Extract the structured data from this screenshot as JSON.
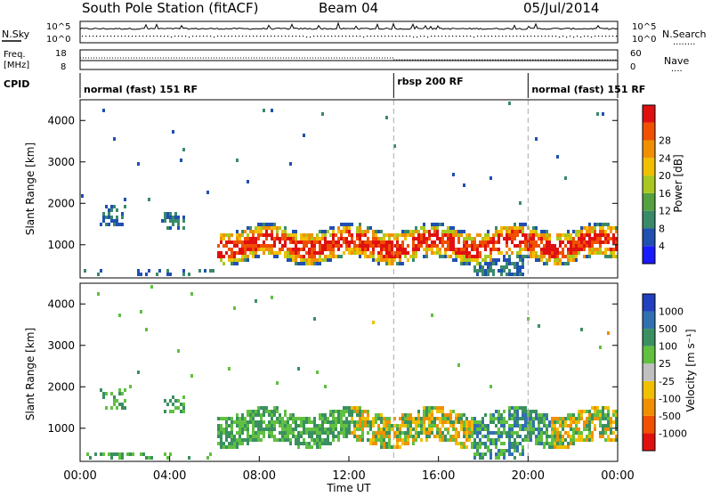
{
  "header": {
    "station": "South Pole Station (fitACF)",
    "beam": "Beam 04",
    "date": "05/Jul/2014"
  },
  "noise_panel": {
    "left_label": "N.Sky",
    "right_label": "N.Search",
    "left_ticks": [
      "10^5",
      "10^0"
    ],
    "right_ticks": [
      "10^5",
      "10^0"
    ]
  },
  "freq_panel": {
    "left_label_line1": "Freq.",
    "left_label_line2": "[MHz]",
    "right_label": "Nave",
    "left_ticks": [
      "18",
      "8"
    ],
    "right_ticks": [
      "60",
      "0"
    ]
  },
  "cpid_panel": {
    "label": "CPID",
    "segments": [
      {
        "label": "normal (fast) 151 RF",
        "start": 0,
        "end": 14
      },
      {
        "label": "rbsp 200 RF",
        "start": 14,
        "end": 20
      },
      {
        "label": "normal (fast) 151 RF",
        "start": 20,
        "end": 24
      }
    ]
  },
  "chart_data": [
    {
      "type": "heatmap",
      "title": "",
      "ylabel": "Slant Range [km]",
      "xlabel": "",
      "ylim": [
        200,
        4500
      ],
      "xlim": [
        0,
        24
      ],
      "yticks": [
        1000,
        2000,
        3000,
        4000
      ],
      "colorbar": {
        "label": "Power [dB]",
        "ticks": [
          "4",
          "8",
          "12",
          "16",
          "20",
          "24",
          "28"
        ],
        "colors": [
          "#1a1aff",
          "#2050b0",
          "#3a8a6a",
          "#55a040",
          "#a8c820",
          "#f0c000",
          "#f09000",
          "#f05000",
          "#e01010"
        ]
      },
      "regions": [
        {
          "t0": 0.8,
          "t1": 1.8,
          "r0": 1500,
          "r1": 2000,
          "level": 1
        },
        {
          "t0": 3.5,
          "t1": 4.6,
          "r0": 1400,
          "r1": 1800,
          "level": 1
        },
        {
          "t0": 6.0,
          "t1": 24.0,
          "r0": 600,
          "r1": 1600,
          "level": 5
        }
      ]
    },
    {
      "type": "heatmap",
      "title": "",
      "ylabel": "Slant Range [km]",
      "xlabel": "Time UT",
      "ylim": [
        200,
        4500
      ],
      "xlim": [
        0,
        24
      ],
      "yticks": [
        1000,
        2000,
        3000,
        4000
      ],
      "colorbar": {
        "label": "Velocity [m s⁻¹]",
        "ticks": [
          "1000",
          "500",
          "100",
          "25",
          "-25",
          "-100",
          "-500",
          "-1000"
        ],
        "colors": [
          "#2040c0",
          "#3070b0",
          "#3a9060",
          "#60c040",
          "#c0c0c0",
          "#f0c000",
          "#f09000",
          "#f05000",
          "#e01010"
        ]
      }
    }
  ],
  "xaxis": {
    "tick_labels": [
      "00:00",
      "04:00",
      "08:00",
      "12:00",
      "16:00",
      "20:00",
      "00:00"
    ],
    "label": "Time UT"
  },
  "annotations": {
    "nsearch_dots": "........",
    "nave_dots": "...."
  }
}
